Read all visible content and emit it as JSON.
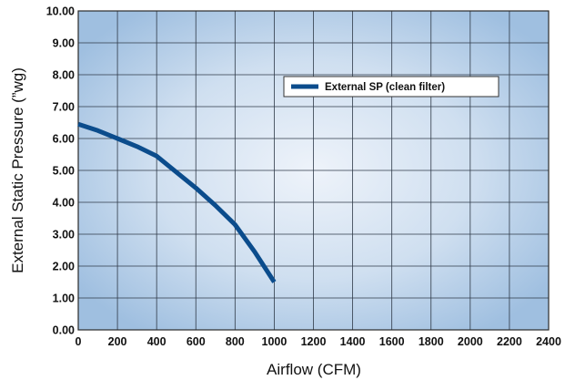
{
  "chart_data": {
    "type": "line",
    "xlabel": "Airflow (CFM)",
    "ylabel": "External Static Pressure (”wg)",
    "xlim": [
      0,
      2400
    ],
    "ylim": [
      0,
      10
    ],
    "x_ticks": [
      "0",
      "200",
      "400",
      "600",
      "800",
      "1000",
      "1200",
      "1400",
      "1600",
      "1800",
      "2000",
      "2200",
      "2400"
    ],
    "y_ticks": [
      "0.00",
      "1.00",
      "2.00",
      "3.00",
      "4.00",
      "5.00",
      "6.00",
      "7.00",
      "8.00",
      "9.00",
      "10.00"
    ],
    "grid": true,
    "legend_position": "top-right",
    "series": [
      {
        "name": "External SP (clean filter)",
        "color": "#0b4c8c",
        "x": [
          0,
          100,
          200,
          300,
          400,
          500,
          600,
          700,
          800,
          900,
          1000
        ],
        "y": [
          6.45,
          6.25,
          6.0,
          5.75,
          5.45,
          4.95,
          4.45,
          3.9,
          3.3,
          2.45,
          1.5
        ]
      }
    ]
  }
}
